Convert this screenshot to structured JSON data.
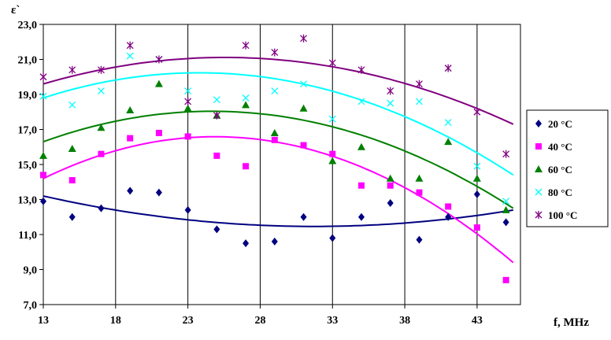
{
  "chart_data": {
    "type": "scatter",
    "xlabel": "f, MHz",
    "ylabel": "ε`",
    "xlim": [
      13,
      46
    ],
    "ylim": [
      7.0,
      23.0
    ],
    "x_ticks": [
      13,
      18,
      23,
      28,
      33,
      38,
      43
    ],
    "y_ticks": [
      "7,0",
      "9,0",
      "11,0",
      "13,0",
      "15,0",
      "17,0",
      "19,0",
      "21,0",
      "23,0"
    ],
    "grid": "vertical",
    "legend_position": "right",
    "trendlines": "polynomial",
    "series": [
      {
        "name": "20 °C",
        "color": "#000080",
        "marker": "diamond",
        "x": [
          13,
          15,
          17,
          19,
          21,
          23,
          25,
          27,
          29,
          31,
          33,
          35,
          37,
          39,
          41,
          43,
          45
        ],
        "y": [
          12.9,
          12.0,
          12.5,
          13.5,
          13.4,
          12.4,
          11.3,
          10.5,
          10.6,
          12.0,
          10.8,
          12.0,
          12.8,
          10.7,
          12.0,
          13.3,
          11.7
        ],
        "trend": [
          13.2,
          11.5,
          12.4
        ]
      },
      {
        "name": "40 °C",
        "color": "#ff00ff",
        "marker": "square",
        "x": [
          13,
          15,
          17,
          19,
          21,
          23,
          25,
          27,
          29,
          31,
          33,
          35,
          37,
          39,
          41,
          43,
          45
        ],
        "y": [
          14.4,
          14.1,
          15.6,
          16.5,
          16.8,
          16.6,
          15.5,
          14.9,
          16.4,
          16.1,
          15.6,
          13.8,
          13.8,
          13.4,
          12.6,
          11.4,
          8.4
        ],
        "trend": [
          14.2,
          16.3,
          9.4
        ]
      },
      {
        "name": "60 °C",
        "color": "#008000",
        "marker": "triangle",
        "x": [
          13,
          15,
          17,
          19,
          21,
          23,
          25,
          27,
          29,
          31,
          33,
          35,
          37,
          39,
          41,
          43,
          45
        ],
        "y": [
          15.5,
          15.9,
          17.1,
          18.1,
          19.6,
          18.2,
          17.8,
          18.4,
          16.8,
          18.2,
          15.2,
          16.0,
          14.2,
          14.2,
          16.3,
          14.2,
          12.4
        ],
        "trend": [
          16.3,
          17.8,
          12.5
        ]
      },
      {
        "name": "80 °C",
        "color": "#00ffff",
        "marker": "x",
        "x": [
          13,
          15,
          17,
          19,
          21,
          23,
          25,
          27,
          29,
          31,
          33,
          35,
          37,
          39,
          41,
          43,
          45
        ],
        "y": [
          18.9,
          18.4,
          19.2,
          21.2,
          21.0,
          19.2,
          18.7,
          18.8,
          19.2,
          19.6,
          17.6,
          18.6,
          18.5,
          18.6,
          17.4,
          14.9,
          12.9
        ],
        "trend": [
          18.8,
          19.9,
          14.4
        ]
      },
      {
        "name": "100 °C",
        "color": "#800080",
        "marker": "asterisk",
        "x": [
          13,
          15,
          17,
          19,
          21,
          23,
          25,
          27,
          29,
          31,
          33,
          35,
          37,
          39,
          41,
          43,
          45
        ],
        "y": [
          20.0,
          20.4,
          20.4,
          21.8,
          21.0,
          18.6,
          17.8,
          21.8,
          21.4,
          22.2,
          20.8,
          20.4,
          19.2,
          19.6,
          20.5,
          18.0,
          15.6
        ],
        "trend": [
          19.6,
          21.0,
          17.3
        ]
      }
    ]
  }
}
